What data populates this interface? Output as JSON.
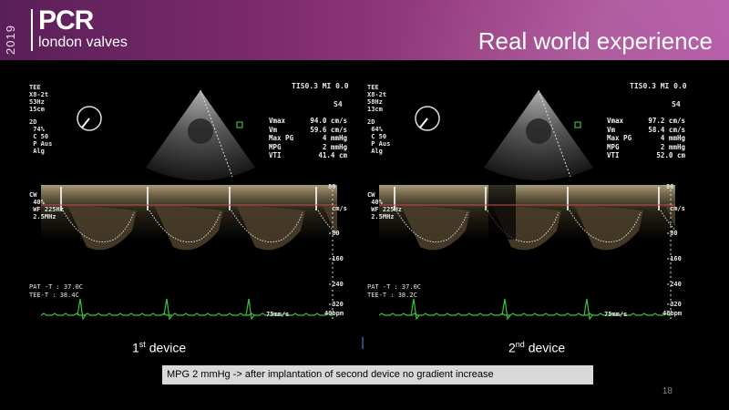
{
  "header": {
    "year": "2019",
    "logo_main": "PCR",
    "logo_sub": "london valves",
    "title": "Real world experience"
  },
  "panels": [
    {
      "mode": "TEE\nX8-2t\n53Hz\n15cm",
      "mode2d": "2D\n 74%\n C 50\n P Aus\n Alg",
      "tis": "TIS0.3  MI 0.0",
      "s4": "S4",
      "measurements": [
        {
          "key": "Vmax",
          "value": "94.0 cm/s"
        },
        {
          "key": "Vm",
          "value": "59.6 cm/s"
        },
        {
          "key": "Max PG",
          "value": "4 mmHg"
        },
        {
          "key": "MPG",
          "value": "2 mmHg"
        },
        {
          "key": "VTI",
          "value": "41.4 cm"
        }
      ],
      "cw": "CW\n 40%\n WF 225Hz\n 2.5MHz",
      "temps": "PAT -T : 37.0C\nTEE-T : 38.4C",
      "scale": [
        "80",
        "cm/s",
        "-80",
        "-160",
        "-240",
        "-320"
      ],
      "speed": "75mm/s",
      "bpm": "49bpm",
      "label_num": "1",
      "label_sup": "st",
      "label_text": " device"
    },
    {
      "mode": "TEE\nX8-2t\n58Hz\n13cm",
      "mode2d": "2D\n 64%\n C 50\n P Aus\n Alg",
      "tis": "TIS0.3  MI 0.0",
      "s4": "S4",
      "measurements": [
        {
          "key": "Vmax",
          "value": "97.2 cm/s"
        },
        {
          "key": "Vm",
          "value": "58.4 cm/s"
        },
        {
          "key": "Max PG",
          "value": "4 mmHg"
        },
        {
          "key": "MPG",
          "value": "2 mmHg"
        },
        {
          "key": "VTI",
          "value": "52.0 cm"
        }
      ],
      "cw": "CW\n 40%\n WF 225Hz\n 2.5MHz",
      "temps": "PAT -T : 37.0C\nTEE-T : 38.2C",
      "scale": [
        "80",
        "cm/s",
        "-80",
        "-160",
        "-240",
        "-320"
      ],
      "speed": "75mm/s",
      "bpm": "48bpm",
      "label_num": "2",
      "label_sup": "nd",
      "label_text": " device"
    }
  ],
  "caption": "MPG 2 mmHg -> after implantation of second device no gradient increase",
  "page_number": "18",
  "colors": {
    "header_start": "#5a1f58",
    "header_end": "#b558a6",
    "ecg": "#3fbf3f",
    "divider": "#2d4a86",
    "caption_bg": "#d9d9d9"
  }
}
